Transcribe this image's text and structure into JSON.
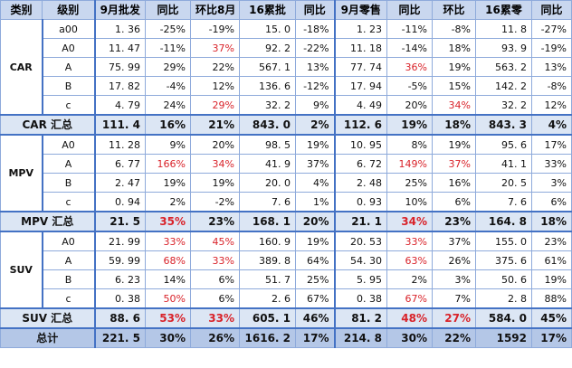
{
  "headers": [
    "类别",
    "级别",
    "9月批发",
    "同比",
    "环比8月",
    "16累批",
    "同比",
    "9月零售",
    "同比",
    "环比",
    "16累零",
    "同比"
  ],
  "groups": [
    {
      "category": "CAR",
      "rows": [
        {
          "level": "a00",
          "cells": [
            "1. 36",
            "-25%",
            "-19%",
            "15. 0",
            "-18%",
            "1. 23",
            "-11%",
            "-8%",
            "11. 8",
            "-27%"
          ]
        },
        {
          "level": "A0",
          "cells": [
            "11. 47",
            "-11%",
            "37%",
            "92. 2",
            "-22%",
            "11. 18",
            "-14%",
            "18%",
            "93. 9",
            "-19%"
          ]
        },
        {
          "level": "A",
          "cells": [
            "75. 99",
            "29%",
            "22%",
            "567. 1",
            "13%",
            "77. 74",
            "36%",
            "19%",
            "563. 2",
            "13%"
          ]
        },
        {
          "level": "B",
          "cells": [
            "17. 82",
            "-4%",
            "12%",
            "136. 6",
            "-12%",
            "17. 94",
            "-5%",
            "15%",
            "142. 2",
            "-8%"
          ]
        },
        {
          "level": "c",
          "cells": [
            "4. 79",
            "24%",
            "29%",
            "32. 2",
            "9%",
            "4. 49",
            "20%",
            "34%",
            "32. 2",
            "12%"
          ]
        }
      ],
      "subtotal": {
        "label": "CAR 汇总",
        "cells": [
          "111. 4",
          "16%",
          "21%",
          "843. 0",
          "2%",
          "112. 6",
          "19%",
          "18%",
          "843. 3",
          "4%"
        ]
      }
    },
    {
      "category": "MPV",
      "rows": [
        {
          "level": "A0",
          "cells": [
            "11. 28",
            "9%",
            "20%",
            "98. 5",
            "19%",
            "10. 95",
            "8%",
            "19%",
            "95. 6",
            "17%"
          ]
        },
        {
          "level": "A",
          "cells": [
            "6. 77",
            "166%",
            "34%",
            "41. 9",
            "37%",
            "6. 72",
            "149%",
            "37%",
            "41. 1",
            "33%"
          ]
        },
        {
          "level": "B",
          "cells": [
            "2. 47",
            "19%",
            "19%",
            "20. 0",
            "4%",
            "2. 48",
            "25%",
            "16%",
            "20. 5",
            "3%"
          ]
        },
        {
          "level": "c",
          "cells": [
            "0. 94",
            "2%",
            "-2%",
            "7. 6",
            "1%",
            "0. 93",
            "10%",
            "6%",
            "7. 6",
            "6%"
          ]
        }
      ],
      "subtotal": {
        "label": "MPV 汇总",
        "cells": [
          "21. 5",
          "35%",
          "23%",
          "168. 1",
          "20%",
          "21. 1",
          "34%",
          "23%",
          "164. 8",
          "18%"
        ]
      }
    },
    {
      "category": "SUV",
      "rows": [
        {
          "level": "A0",
          "cells": [
            "21. 99",
            "33%",
            "45%",
            "160. 9",
            "19%",
            "20. 53",
            "33%",
            "37%",
            "155. 0",
            "23%"
          ]
        },
        {
          "level": "A",
          "cells": [
            "59. 99",
            "68%",
            "33%",
            "389. 8",
            "64%",
            "54. 30",
            "63%",
            "26%",
            "375. 6",
            "61%"
          ]
        },
        {
          "level": "B",
          "cells": [
            "6. 23",
            "14%",
            "6%",
            "51. 7",
            "25%",
            "5. 95",
            "2%",
            "3%",
            "50. 6",
            "19%"
          ]
        },
        {
          "level": "c",
          "cells": [
            "0. 38",
            "50%",
            "6%",
            "2. 6",
            "67%",
            "0. 38",
            "67%",
            "7%",
            "2. 8",
            "88%"
          ]
        }
      ],
      "subtotal": {
        "label": "SUV 汇总",
        "cells": [
          "88. 6",
          "53%",
          "33%",
          "605. 1",
          "46%",
          "81. 2",
          "48%",
          "27%",
          "584. 0",
          "45%"
        ]
      }
    }
  ],
  "total": {
    "label": "总计",
    "cells": [
      "221. 5",
      "30%",
      "26%",
      "1616. 2",
      "17%",
      "214. 8",
      "30%",
      "22%",
      "1592",
      "17%"
    ]
  },
  "highlight_color": "#d9232a",
  "red_cells": [
    "0:1:2",
    "0:4:2",
    "0:2:6",
    "0:4:7",
    "1:1:1",
    "1:1:2",
    "1:1:6",
    "1:1:7",
    "1:sub:1",
    "1:sub:6",
    "2:0:1",
    "2:0:2",
    "2:0:6",
    "2:1:1",
    "2:1:2",
    "2:1:6",
    "2:3:1",
    "2:3:6",
    "2:sub:1",
    "2:sub:2",
    "2:sub:6",
    "2:sub:7"
  ]
}
